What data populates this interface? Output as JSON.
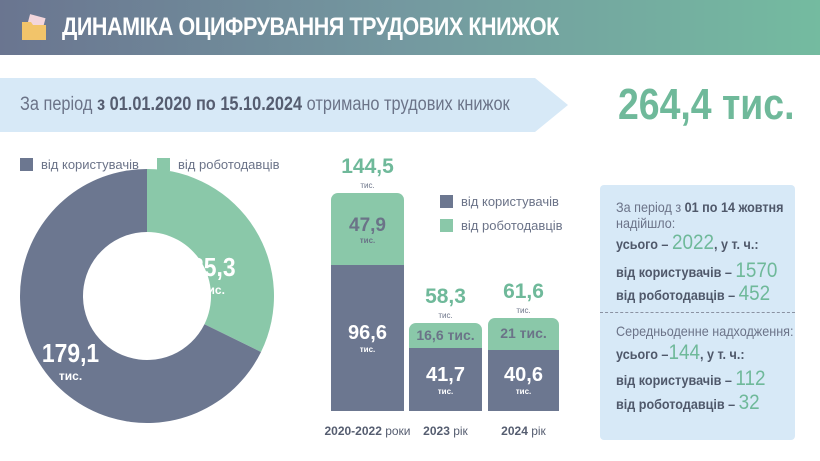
{
  "header": {
    "title": "ДИНАМІКА ОЦИФРУВАННЯ ТРУДОВИХ КНИЖОК",
    "icon": "folder-documents-icon"
  },
  "banner": {
    "prefix": "За період ",
    "range": "з 01.01.2020 по 15.10.2024",
    "suffix": " отримано трудових книжок",
    "total": "264,4 тис."
  },
  "colors": {
    "users": "#6c7790",
    "employers": "#8ac8a9",
    "accent": "#6fb99a"
  },
  "chart_data": [
    {
      "type": "pie",
      "subtype": "donut",
      "legend": [
        "від користувачів",
        "від роботодавців"
      ],
      "slices": [
        {
          "name": "від роботодавців",
          "value": 85.3,
          "label": "85,3",
          "unit": "тис."
        },
        {
          "name": "від користувачів",
          "value": 179.1,
          "label": "179,1",
          "unit": "тис."
        }
      ],
      "legend_placement": "top"
    },
    {
      "type": "bar",
      "stacked": true,
      "legend": [
        "від користувачів",
        "від роботодавців"
      ],
      "legend_placement": "top-right",
      "categories": [
        {
          "bold": "2020-2022",
          "rest": " роки"
        },
        {
          "bold": "2023",
          "rest": " рік"
        },
        {
          "bold": "2024",
          "rest": " рік"
        }
      ],
      "series": [
        {
          "name": "від користувачів",
          "values": [
            96.6,
            41.7,
            40.6
          ],
          "labels": [
            "96,6",
            "41,7",
            "40,6"
          ]
        },
        {
          "name": "від роботодавців",
          "values": [
            47.9,
            16.6,
            21
          ],
          "labels": [
            "47,9",
            "16,6 тис.",
            "21 тис."
          ]
        }
      ],
      "totals": [
        144.5,
        58.3,
        61.6
      ],
      "total_labels": [
        "144,5",
        "58,3",
        "61,6"
      ],
      "unit": "тис."
    }
  ],
  "summary": {
    "period_prefix": "За період з ",
    "period_bold": "01 по 14 жовтня",
    "period_line2": "надійшло:",
    "total_label": "усього – ",
    "total_value": "2022",
    "total_suffix": ", у т. ч.:",
    "users_label": "від користувачів – ",
    "users_value": "1570",
    "emp_label": "від роботодавців – ",
    "emp_value": "452",
    "avg_title": "Середньоденне надходження:",
    "avg_total_label": "усього –",
    "avg_total_value": "144",
    "avg_total_suffix": ", у т. ч.:",
    "avg_users_label": "від користувачів – ",
    "avg_users_value": "112",
    "avg_emp_label": "від роботодавців – ",
    "avg_emp_value": "32"
  }
}
